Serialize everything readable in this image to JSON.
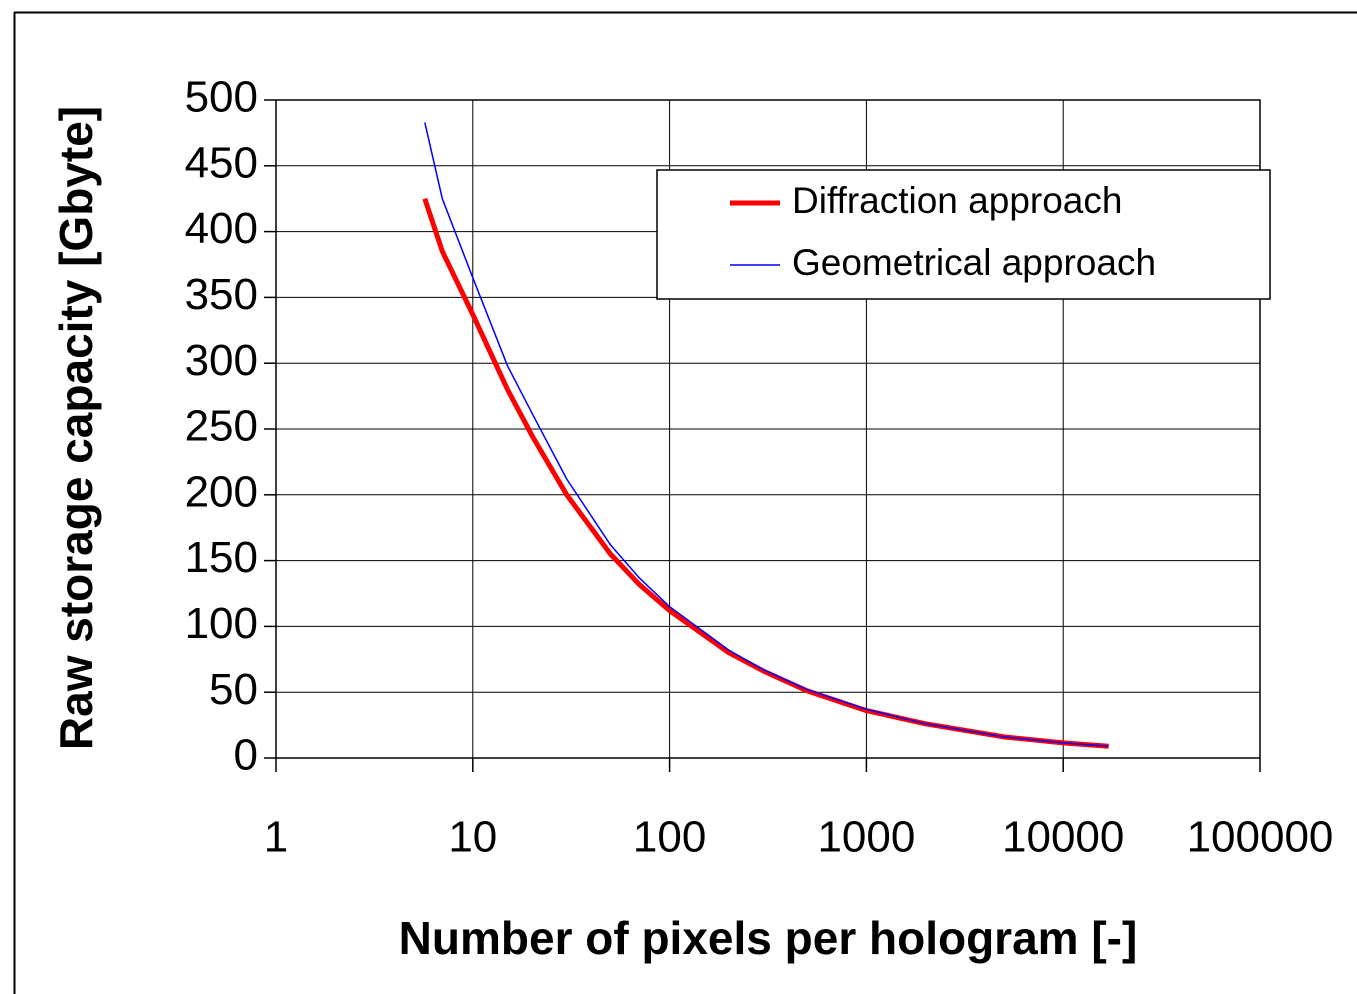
{
  "chart_data": {
    "type": "line",
    "x_label": "Number of pixels per hologram [-]",
    "y_label": "Raw storage capacity [Gbyte]",
    "x": [
      5.7,
      7,
      10,
      15,
      20,
      30,
      50,
      70,
      100,
      200,
      300,
      500,
      1000,
      2000,
      5000,
      10000,
      17000
    ],
    "series": [
      {
        "name": "Diffraction approach",
        "color": "#ff0000",
        "width": 5,
        "values": [
          425,
          385,
          337,
          280,
          245,
          200,
          155,
          132,
          112,
          80,
          66,
          51,
          36,
          26,
          16,
          11.5,
          9
        ]
      },
      {
        "name": "Geometrical approach",
        "color": "#0000ff",
        "width": 1.5,
        "values": [
          483,
          425,
          365,
          298,
          262,
          212,
          162,
          137,
          115,
          82,
          67,
          52,
          37,
          26,
          16,
          11.5,
          9
        ]
      }
    ],
    "xlim": [
      1,
      100000
    ],
    "xticks": [
      1,
      10,
      100,
      1000,
      10000,
      100000
    ],
    "xscale": "log",
    "ylim": [
      0,
      500
    ],
    "yticks": [
      0,
      50,
      100,
      150,
      200,
      250,
      300,
      350,
      400,
      450,
      500
    ],
    "grid": true,
    "legend": "upper right"
  }
}
